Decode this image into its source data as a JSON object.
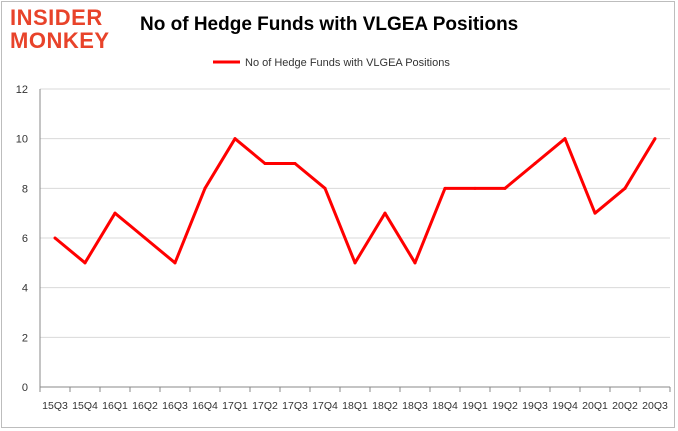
{
  "logo": {
    "line1": "INSIDER",
    "line2": "MONKEY"
  },
  "chart_data": {
    "type": "line",
    "title": "No of Hedge Funds with VLGEA Positions",
    "categories": [
      "15Q3",
      "15Q4",
      "16Q1",
      "16Q2",
      "16Q3",
      "16Q4",
      "17Q1",
      "17Q2",
      "17Q3",
      "17Q4",
      "18Q1",
      "18Q2",
      "18Q3",
      "18Q4",
      "19Q1",
      "19Q2",
      "19Q3",
      "19Q4",
      "20Q1",
      "20Q2",
      "20Q3"
    ],
    "series": [
      {
        "name": "No of Hedge Funds with VLGEA Positions",
        "color": "#ff0000",
        "values": [
          6,
          5,
          7,
          6,
          5,
          8,
          10,
          9,
          9,
          8,
          5,
          7,
          5,
          8,
          8,
          8,
          9,
          10,
          7,
          8,
          10
        ]
      }
    ],
    "yticks": [
      "0",
      "2",
      "4",
      "6",
      "8",
      "10",
      "12"
    ],
    "ylim": [
      0,
      12
    ],
    "grid": true,
    "legend": "top-center",
    "xlabel": "",
    "ylabel": ""
  }
}
